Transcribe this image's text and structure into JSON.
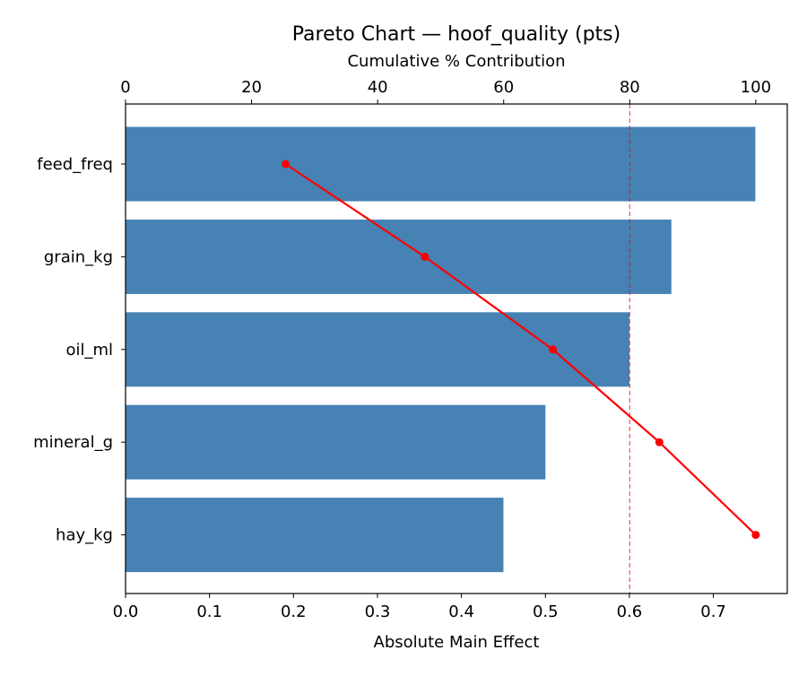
{
  "chart_data": {
    "type": "bar",
    "orientation": "horizontal",
    "title": "Pareto Chart — hoof_quality (pts)",
    "xlabel": "Absolute Main Effect",
    "x2label": "Cumulative % Contribution",
    "categories": [
      "feed_freq",
      "grain_kg",
      "oil_ml",
      "mineral_g",
      "hay_kg"
    ],
    "values": [
      0.75,
      0.65,
      0.6,
      0.5,
      0.45
    ],
    "cumulative_percent": [
      25.4,
      47.5,
      67.8,
      84.7,
      100.0
    ],
    "xlim": [
      0,
      0.788
    ],
    "x2lim": [
      0,
      105
    ],
    "xticks": [
      "0.0",
      "0.1",
      "0.2",
      "0.3",
      "0.4",
      "0.5",
      "0.6",
      "0.7"
    ],
    "x2ticks": [
      "0",
      "20",
      "40",
      "60",
      "80",
      "100"
    ],
    "threshold_percent": 80,
    "grid": false,
    "colors": {
      "bars": "#4682b4",
      "cumulative": "#ff0000",
      "threshold": "#ff0000"
    }
  }
}
